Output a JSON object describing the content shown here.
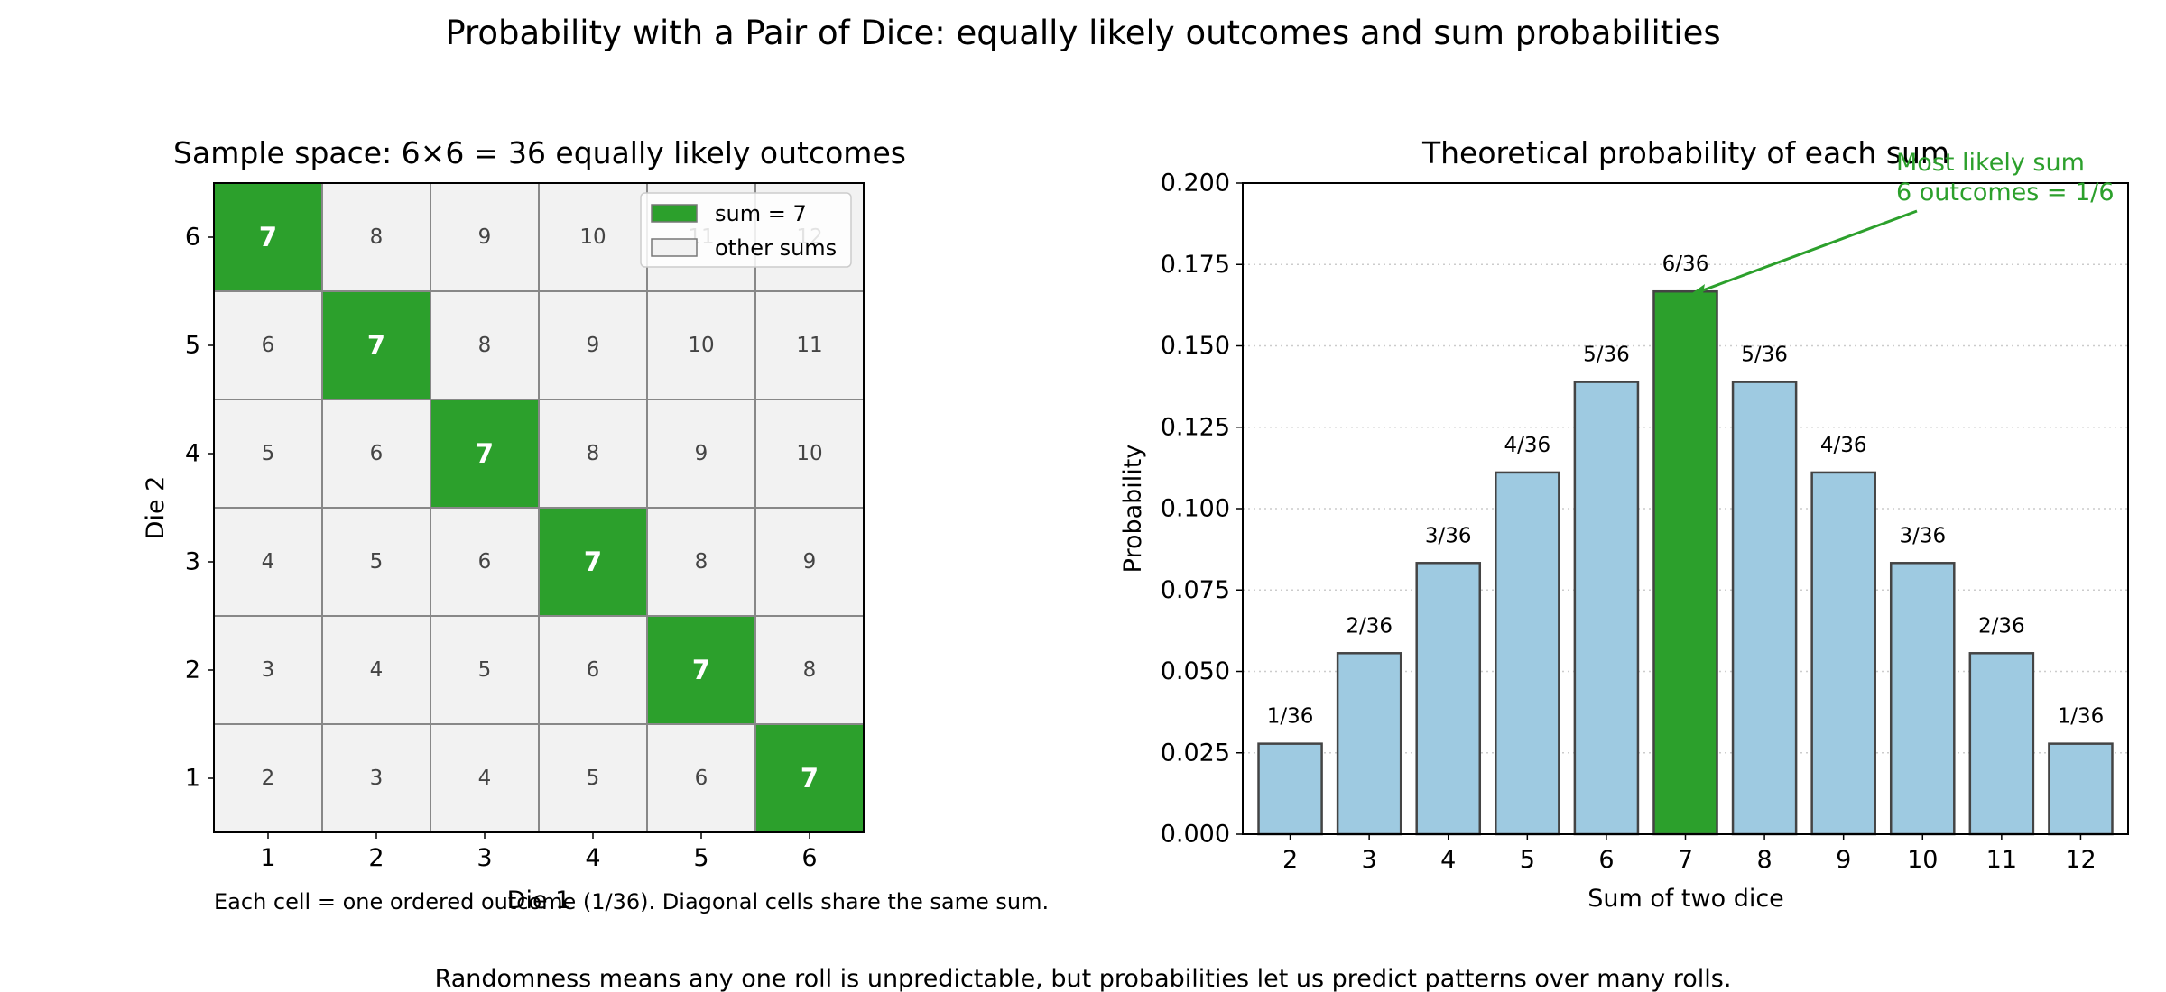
{
  "suptitle": "Probability with a Pair of Dice: equally likely outcomes and sum probabilities",
  "footer": "Randomness means any one roll is unpredictable, but probabilities let us predict patterns over many rolls.",
  "colors": {
    "highlight": "#2ca02c",
    "bar": "#9ecae1",
    "cell_other": "#f2f2f2",
    "annotation": "#2ca02c"
  },
  "chart_data": [
    {
      "type": "heatmap",
      "title": "Sample space: 6×6 = 36 equally likely outcomes",
      "xlabel": "Die 1",
      "ylabel": "Die 2",
      "x_ticks": [
        "1",
        "2",
        "3",
        "4",
        "5",
        "6"
      ],
      "y_ticks": [
        "1",
        "2",
        "3",
        "4",
        "5",
        "6"
      ],
      "cell_rule": "sum = die1 + die2",
      "highlight_sum": 7,
      "cells": [
        [
          2,
          3,
          4,
          5,
          6,
          7
        ],
        [
          3,
          4,
          5,
          6,
          7,
          8
        ],
        [
          4,
          5,
          6,
          7,
          8,
          9
        ],
        [
          5,
          6,
          7,
          8,
          9,
          10
        ],
        [
          6,
          7,
          8,
          9,
          10,
          11
        ],
        [
          7,
          8,
          9,
          10,
          11,
          12
        ]
      ],
      "legend": [
        {
          "label": "sum = 7",
          "color": "#2ca02c"
        },
        {
          "label": "other sums",
          "color": "#f2f2f2"
        }
      ],
      "legend_position": "upper right",
      "note": "Each cell = one ordered outcome (1/36). Diagonal cells share the same sum."
    },
    {
      "type": "bar",
      "title": "Theoretical probability of each sum",
      "xlabel": "Sum of two dice",
      "ylabel": "Probability",
      "categories": [
        "2",
        "3",
        "4",
        "5",
        "6",
        "7",
        "8",
        "9",
        "10",
        "11",
        "12"
      ],
      "values": [
        0.0278,
        0.0556,
        0.0833,
        0.1111,
        0.1389,
        0.1667,
        0.1389,
        0.1111,
        0.0833,
        0.0556,
        0.0278
      ],
      "labels": [
        "1/36",
        "2/36",
        "3/36",
        "4/36",
        "5/36",
        "6/36",
        "5/36",
        "4/36",
        "3/36",
        "2/36",
        "1/36"
      ],
      "highlight_index": 5,
      "ylim": [
        0,
        0.2
      ],
      "yticks": [
        "0.000",
        "0.025",
        "0.050",
        "0.075",
        "0.100",
        "0.125",
        "0.150",
        "0.175",
        "0.200"
      ],
      "grid": "y dotted",
      "annotation": {
        "line1": "Most likely sum",
        "line2": "6 outcomes = 1/6",
        "target": "7"
      }
    }
  ]
}
